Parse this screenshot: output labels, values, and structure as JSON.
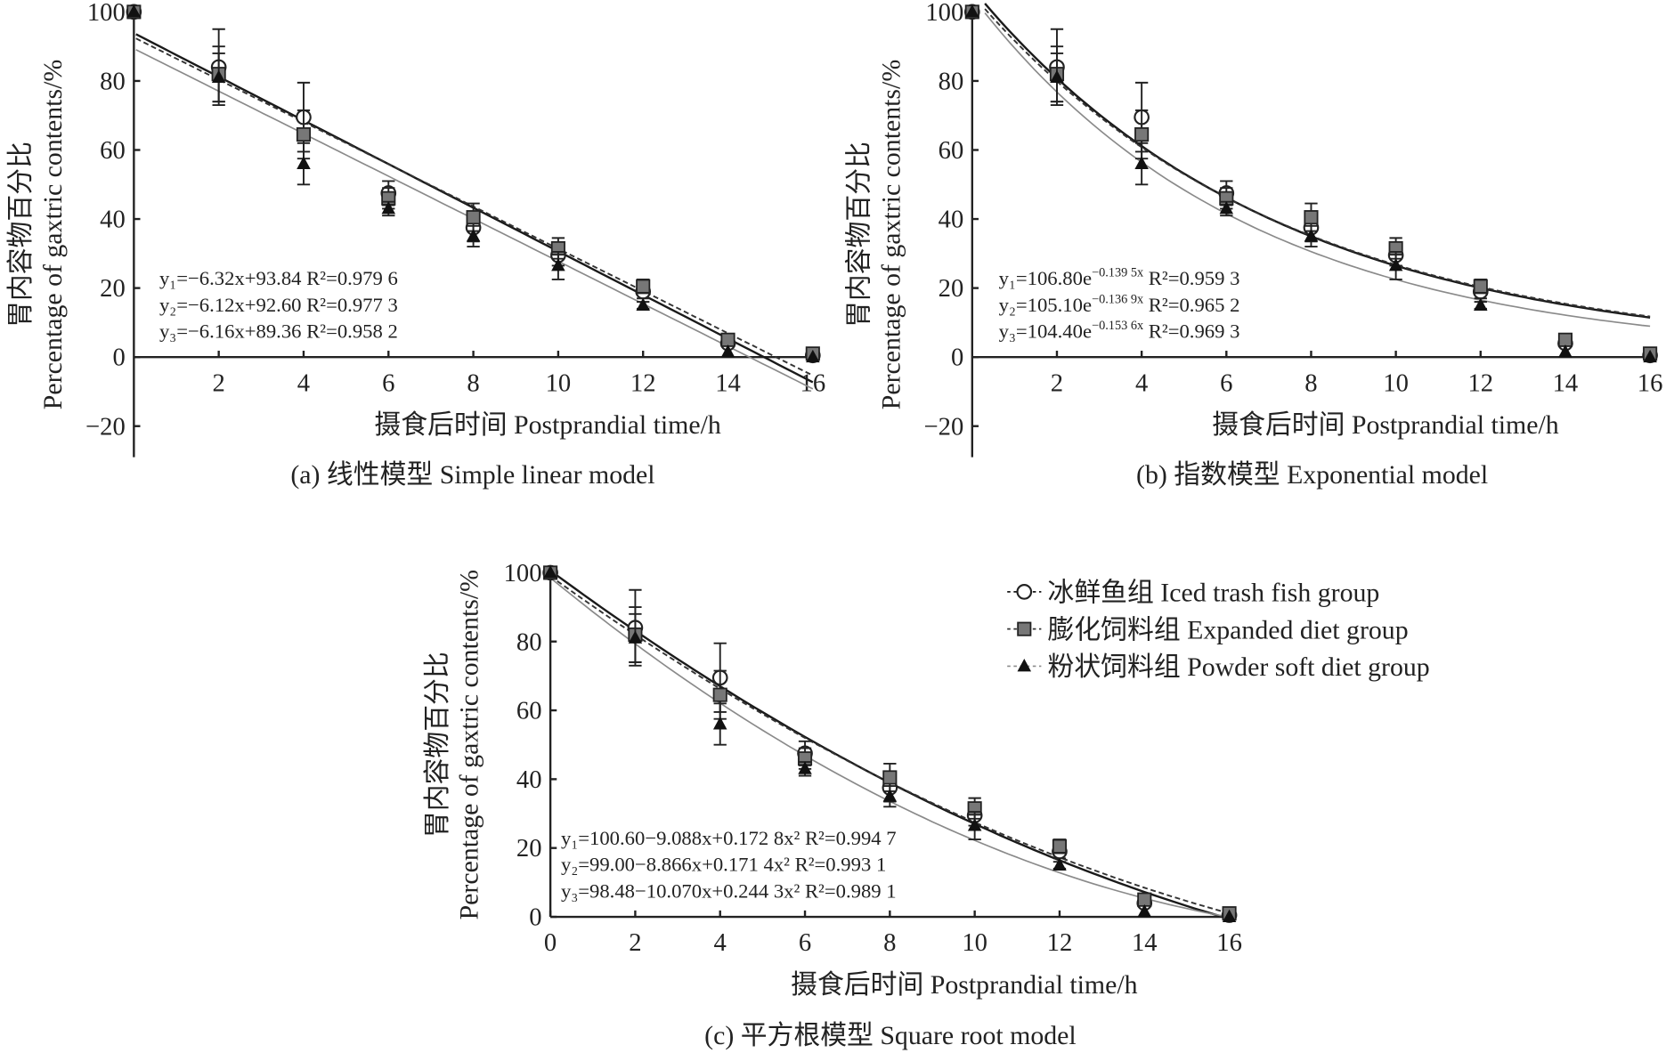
{
  "chart_data": [
    {
      "type": "scatter",
      "caption": "(a) 线性模型 Simple linear model",
      "xlabel": "摄食后时间 Postprandial time/h",
      "ylabel": [
        "胃内容物百分比",
        "Percentage of gaxtric contents/%"
      ],
      "xlim": [
        0,
        16
      ],
      "ylim": [
        -29,
        100
      ],
      "xticks": [
        "2",
        "4",
        "6",
        "8",
        "10",
        "12",
        "14",
        "16"
      ],
      "yticks": [
        "100",
        "80",
        "60",
        "40",
        "20",
        "0",
        "-20"
      ],
      "model": "linear",
      "fits": [
        {
          "coef": [
            93.84,
            -6.32
          ],
          "main": "y₁=−6.32x+93.84",
          "sup": "",
          "r2": "R²=0.979 6"
        },
        {
          "coef": [
            92.6,
            -6.12
          ],
          "main": "y₂=−6.12x+92.60",
          "sup": "",
          "r2": "R²=0.977 3"
        },
        {
          "coef": [
            89.36,
            -6.16
          ],
          "main": "y₃=−6.16x+89.36",
          "sup": "",
          "r2": "R²=0.958 2"
        }
      ]
    },
    {
      "type": "scatter",
      "caption": "(b) 指数模型 Exponential model",
      "xlabel": "摄食后时间 Postprandial time/h",
      "ylabel": [
        "胃内容物百分比",
        "Percentage of gaxtric contents/%"
      ],
      "xlim": [
        0,
        16
      ],
      "ylim": [
        -29,
        100
      ],
      "xticks": [
        "2",
        "4",
        "6",
        "8",
        "10",
        "12",
        "14",
        "16"
      ],
      "yticks": [
        "100",
        "80",
        "60",
        "40",
        "20",
        "0",
        "-20"
      ],
      "model": "exponential",
      "fits": [
        {
          "coef": [
            106.8,
            -0.1395
          ],
          "main": "y₁=106.80e",
          "sup": "−0.139 5x",
          "r2": "R²=0.959 3"
        },
        {
          "coef": [
            105.1,
            -0.1369
          ],
          "main": "y₂=105.10e",
          "sup": "−0.136 9x",
          "r2": "R²=0.965 2"
        },
        {
          "coef": [
            104.4,
            -0.1536
          ],
          "main": "y₃=104.40e",
          "sup": "−0.153 6x",
          "r2": "R²=0.969 3"
        }
      ]
    },
    {
      "type": "scatter",
      "caption": "(c) 平方根模型 Square root model",
      "xlabel": "摄食后时间 Postprandial time/h",
      "ylabel": [
        "胃内容物百分比",
        "Percentage of gaxtric contents/%"
      ],
      "xlim": [
        0,
        16
      ],
      "ylim": [
        0,
        100
      ],
      "xticks": [
        "0",
        "2",
        "4",
        "6",
        "8",
        "10",
        "12",
        "14",
        "16"
      ],
      "yticks": [
        "100",
        "80",
        "60",
        "40",
        "20",
        "0"
      ],
      "model": "quadratic",
      "fits": [
        {
          "coef": [
            100.6,
            -9.088,
            0.1728
          ],
          "main": "y₁=100.60−9.088x+0.172 8x²",
          "sup": "",
          "r2": "R²=0.994 7"
        },
        {
          "coef": [
            99.0,
            -8.866,
            0.1714
          ],
          "main": "y₂=99.00−8.866x+0.171 4x²",
          "sup": "",
          "r2": "R²=0.993 1"
        },
        {
          "coef": [
            98.48,
            -10.07,
            0.2443
          ],
          "main": "y₃=98.48−10.070x+0.244 3x²",
          "sup": "",
          "r2": "R²=0.989 1"
        }
      ]
    }
  ],
  "x": [
    0,
    2,
    4,
    6,
    8,
    10,
    12,
    14,
    16
  ],
  "series": [
    {
      "name": "冰鲜鱼组 Iced trash fish group",
      "marker": "circle",
      "line": "solid",
      "color": "#222222",
      "values": [
        100,
        84,
        69.5,
        47.5,
        37.5,
        29.5,
        19,
        4,
        0.5
      ],
      "errors": [
        0,
        11,
        10,
        3.5,
        4,
        3,
        2,
        1,
        0
      ]
    },
    {
      "name": "膨化饲料组 Expanded diet group",
      "marker": "square",
      "line": "dashed",
      "color": "#555555",
      "values": [
        100,
        82,
        64.5,
        46,
        40.5,
        31.5,
        20.5,
        5,
        1
      ],
      "errors": [
        0,
        8,
        7,
        3,
        4,
        3,
        2,
        1,
        0
      ]
    },
    {
      "name": "粉状饲料组 Powder soft diet group",
      "marker": "triangle",
      "line": "gray",
      "color": "#999999",
      "values": [
        100,
        81,
        56,
        43,
        35,
        26.5,
        15,
        1.5,
        0
      ],
      "errors": [
        0,
        7,
        6,
        2,
        3,
        4,
        1,
        0,
        0
      ]
    }
  ]
}
